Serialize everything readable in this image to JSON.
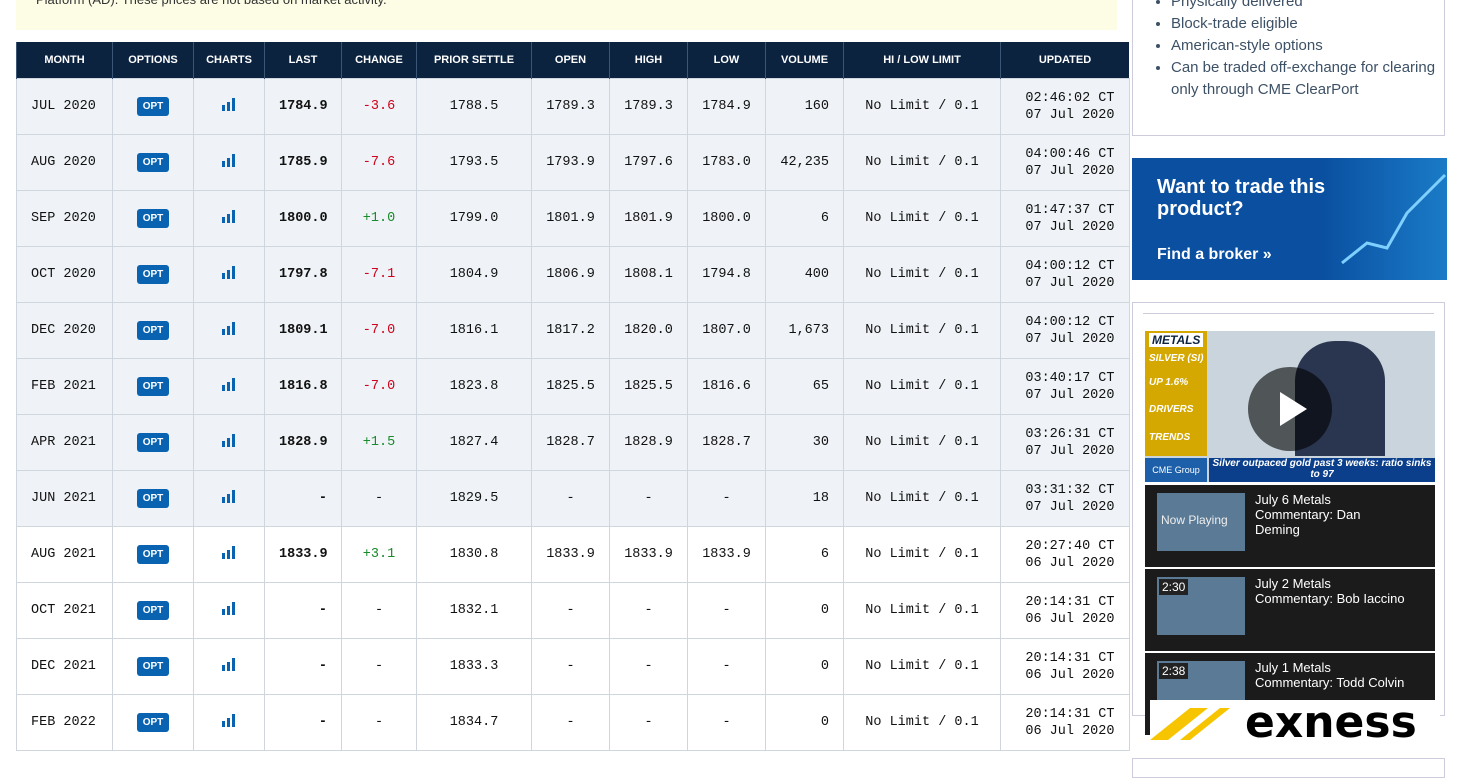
{
  "notice": "Platform (AD). These prices are not based on market activity.",
  "table": {
    "columns": [
      "MONTH",
      "OPTIONS",
      "CHARTS",
      "LAST",
      "CHANGE",
      "PRIOR SETTLE",
      "OPEN",
      "HIGH",
      "LOW",
      "VOLUME",
      "HI / LOW LIMIT",
      "UPDATED"
    ],
    "rows": [
      {
        "month": "JUL 2020",
        "options": "OPT",
        "last": "1784.9",
        "change": "-3.6",
        "prior_settle": "1788.5",
        "open": "1789.3",
        "high": "1789.3",
        "low": "1784.9",
        "volume": "160",
        "limit": "No Limit / 0.1",
        "time": "02:46:02 CT",
        "date": "07 Jul 2020"
      },
      {
        "month": "AUG 2020",
        "options": "OPT",
        "last": "1785.9",
        "change": "-7.6",
        "prior_settle": "1793.5",
        "open": "1793.9",
        "high": "1797.6",
        "low": "1783.0",
        "volume": "42,235",
        "limit": "No Limit / 0.1",
        "time": "04:00:46 CT",
        "date": "07 Jul 2020"
      },
      {
        "month": "SEP 2020",
        "options": "OPT",
        "last": "1800.0",
        "change": "+1.0",
        "prior_settle": "1799.0",
        "open": "1801.9",
        "high": "1801.9",
        "low": "1800.0",
        "volume": "6",
        "limit": "No Limit / 0.1",
        "time": "01:47:37 CT",
        "date": "07 Jul 2020"
      },
      {
        "month": "OCT 2020",
        "options": "OPT",
        "last": "1797.8",
        "change": "-7.1",
        "prior_settle": "1804.9",
        "open": "1806.9",
        "high": "1808.1",
        "low": "1794.8",
        "volume": "400",
        "limit": "No Limit / 0.1",
        "time": "04:00:12 CT",
        "date": "07 Jul 2020"
      },
      {
        "month": "DEC 2020",
        "options": "OPT",
        "last": "1809.1",
        "change": "-7.0",
        "prior_settle": "1816.1",
        "open": "1817.2",
        "high": "1820.0",
        "low": "1807.0",
        "volume": "1,673",
        "limit": "No Limit / 0.1",
        "time": "04:00:12 CT",
        "date": "07 Jul 2020"
      },
      {
        "month": "FEB 2021",
        "options": "OPT",
        "last": "1816.8",
        "change": "-7.0",
        "prior_settle": "1823.8",
        "open": "1825.5",
        "high": "1825.5",
        "low": "1816.6",
        "volume": "65",
        "limit": "No Limit / 0.1",
        "time": "03:40:17 CT",
        "date": "07 Jul 2020"
      },
      {
        "month": "APR 2021",
        "options": "OPT",
        "last": "1828.9",
        "change": "+1.5",
        "prior_settle": "1827.4",
        "open": "1828.7",
        "high": "1828.9",
        "low": "1828.7",
        "volume": "30",
        "limit": "No Limit / 0.1",
        "time": "03:26:31 CT",
        "date": "07 Jul 2020"
      },
      {
        "month": "JUN 2021",
        "options": "OPT",
        "last": "-",
        "change": "-",
        "prior_settle": "1829.5",
        "open": "-",
        "high": "-",
        "low": "-",
        "volume": "18",
        "limit": "No Limit / 0.1",
        "time": "03:31:32 CT",
        "date": "07 Jul 2020"
      },
      {
        "month": "AUG 2021",
        "options": "OPT",
        "last": "1833.9",
        "change": "+3.1",
        "prior_settle": "1830.8",
        "open": "1833.9",
        "high": "1833.9",
        "low": "1833.9",
        "volume": "6",
        "limit": "No Limit / 0.1",
        "time": "20:27:40 CT",
        "date": "06 Jul 2020"
      },
      {
        "month": "OCT 2021",
        "options": "OPT",
        "last": "-",
        "change": "-",
        "prior_settle": "1832.1",
        "open": "-",
        "high": "-",
        "low": "-",
        "volume": "0",
        "limit": "No Limit / 0.1",
        "time": "20:14:31 CT",
        "date": "06 Jul 2020"
      },
      {
        "month": "DEC 2021",
        "options": "OPT",
        "last": "-",
        "change": "-",
        "prior_settle": "1833.3",
        "open": "-",
        "high": "-",
        "low": "-",
        "volume": "0",
        "limit": "No Limit / 0.1",
        "time": "20:14:31 CT",
        "date": "06 Jul 2020"
      },
      {
        "month": "FEB 2022",
        "options": "OPT",
        "last": "-",
        "change": "-",
        "prior_settle": "1834.7",
        "open": "-",
        "high": "-",
        "low": "-",
        "volume": "0",
        "limit": "No Limit / 0.1",
        "time": "20:14:31 CT",
        "date": "06 Jul 2020"
      }
    ]
  },
  "sidebar": {
    "features": [
      "Physically delivered",
      "Block-trade eligible",
      "American-style options",
      "Can be traded off-exchange for clearing only through CME ClearPort"
    ],
    "ad": {
      "headline": "Want to trade this product?",
      "link": "Find a broker »"
    },
    "video": {
      "tags": [
        "METALS",
        "SILVER (SI)",
        "UP 1.6%",
        "DRIVERS",
        "TRENDS"
      ],
      "brand": "CME Group",
      "caption": "Silver outpaced gold past 3 weeks: ratio sinks to 97",
      "playlist": [
        {
          "badge": "Now Playing",
          "title": "July 6 Metals Commentary: Dan Deming"
        },
        {
          "badge": "2:30",
          "title": "July 2 Metals Commentary: Bob Iaccino"
        },
        {
          "badge": "2:38",
          "title": "July 1 Metals Commentary: Todd Colvin"
        }
      ]
    },
    "logo": "exness"
  }
}
